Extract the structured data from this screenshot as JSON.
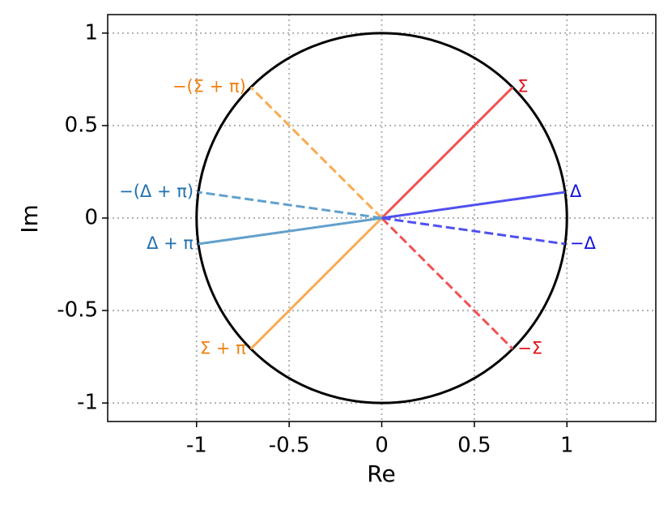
{
  "chart_data": {
    "type": "line",
    "xlabel": "Re",
    "ylabel": "Im",
    "xlim": [
      -1.48,
      1.48
    ],
    "ylim": [
      -1.1,
      1.1
    ],
    "xticks": [
      -1,
      -0.5,
      0,
      0.5,
      1
    ],
    "yticks": [
      -1,
      -0.5,
      0,
      0.5,
      1
    ],
    "grid": true,
    "unit_circle": {
      "center": [
        0,
        0
      ],
      "radius": 1,
      "color": "#000000"
    },
    "series": [
      {
        "name": "Σ",
        "color": "#f05252",
        "label_color": "#e0101a",
        "dashed": false,
        "x": [
          0,
          0.707
        ],
        "y": [
          0,
          0.707
        ]
      },
      {
        "name": "−Σ",
        "color": "#f05252",
        "label_color": "#e0101a",
        "dashed": true,
        "x": [
          0,
          0.707
        ],
        "y": [
          0,
          -0.707
        ]
      },
      {
        "name": "Σ + π",
        "color": "#fbaa50",
        "label_color": "#f08010",
        "dashed": false,
        "x": [
          0,
          -0.707
        ],
        "y": [
          0,
          -0.707
        ]
      },
      {
        "name": "−(Σ + π)",
        "color": "#fbaa50",
        "label_color": "#f08010",
        "dashed": true,
        "x": [
          0,
          -0.707
        ],
        "y": [
          0,
          0.707
        ]
      },
      {
        "name": "Δ",
        "color": "#5050f0",
        "label_color": "#1010e0",
        "dashed": false,
        "x": [
          0,
          0.99
        ],
        "y": [
          0,
          0.14
        ]
      },
      {
        "name": "−Δ",
        "color": "#5050f0",
        "label_color": "#1010e0",
        "dashed": true,
        "x": [
          0,
          0.99
        ],
        "y": [
          0,
          -0.14
        ]
      },
      {
        "name": "Δ + π",
        "color": "#62a0cc",
        "label_color": "#1f70b0",
        "dashed": false,
        "x": [
          0,
          -0.99
        ],
        "y": [
          0,
          -0.14
        ]
      },
      {
        "name": "−(Δ + π)",
        "color": "#62a0cc",
        "label_color": "#1f70b0",
        "dashed": true,
        "x": [
          0,
          -0.99
        ],
        "y": [
          0,
          0.14
        ]
      }
    ]
  }
}
